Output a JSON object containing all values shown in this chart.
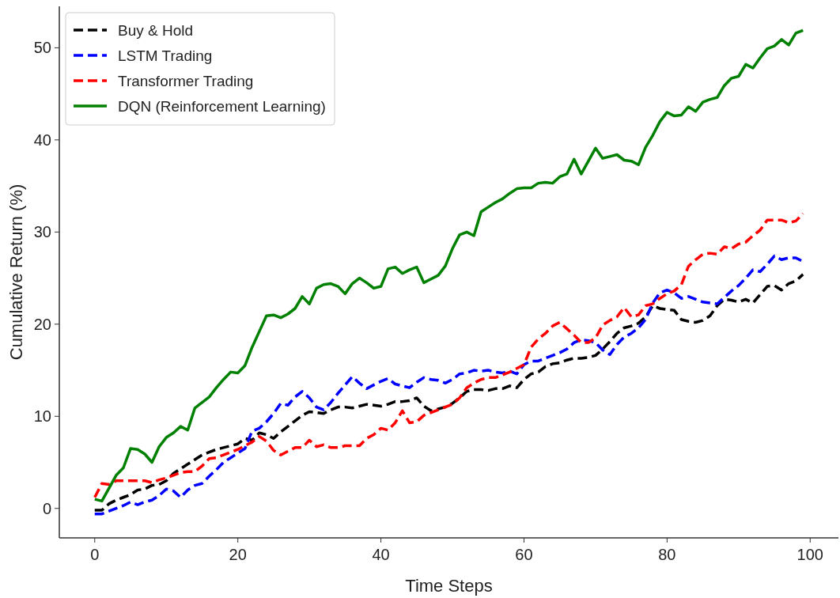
{
  "chart_data": {
    "type": "line",
    "xlabel": "Time Steps",
    "ylabel": "Cumulative Return (%)",
    "x": [
      0,
      1,
      2,
      3,
      4,
      5,
      6,
      7,
      8,
      9,
      10,
      11,
      12,
      13,
      14,
      15,
      16,
      17,
      18,
      19,
      20,
      21,
      22,
      23,
      24,
      25,
      26,
      27,
      28,
      29,
      30,
      31,
      32,
      33,
      34,
      35,
      36,
      37,
      38,
      39,
      40,
      41,
      42,
      43,
      44,
      45,
      46,
      47,
      48,
      49,
      50,
      51,
      52,
      53,
      54,
      55,
      56,
      57,
      58,
      59,
      60,
      61,
      62,
      63,
      64,
      65,
      66,
      67,
      68,
      69,
      70,
      71,
      72,
      73,
      74,
      75,
      76,
      77,
      78,
      79,
      80,
      81,
      82,
      83,
      84,
      85,
      86,
      87,
      88,
      89,
      90,
      91,
      92,
      93,
      94,
      95,
      96,
      97,
      98,
      99
    ],
    "series": [
      {
        "name": "Buy & Hold",
        "color": "#000000",
        "line_style": "dashed",
        "values": [
          -0.2,
          -0.2,
          0.5,
          0.9,
          1.2,
          1.5,
          2.0,
          2.1,
          2.5,
          2.6,
          3.0,
          3.8,
          4.3,
          4.8,
          5.3,
          5.8,
          6.1,
          6.4,
          6.6,
          6.8,
          7.0,
          7.6,
          7.4,
          8.2,
          8.0,
          7.6,
          8.3,
          8.9,
          9.5,
          10.1,
          10.5,
          10.4,
          10.3,
          10.7,
          11.0,
          11.0,
          10.9,
          11.1,
          11.3,
          11.2,
          11.1,
          11.3,
          11.6,
          11.6,
          11.7,
          12.0,
          11.1,
          10.6,
          10.8,
          11.0,
          11.4,
          12.0,
          12.7,
          12.9,
          12.9,
          12.8,
          13.0,
          13.0,
          13.3,
          13.1,
          14.0,
          14.6,
          14.8,
          15.4,
          15.7,
          15.8,
          16.1,
          16.3,
          16.3,
          16.4,
          16.6,
          17.3,
          18.1,
          19.0,
          19.6,
          19.8,
          20.1,
          20.8,
          22.0,
          21.7,
          21.6,
          21.5,
          20.5,
          20.3,
          20.2,
          20.4,
          20.9,
          22.0,
          22.7,
          22.6,
          22.4,
          22.7,
          22.3,
          23.2,
          24.1,
          24.2,
          23.7,
          24.4,
          24.7,
          25.4
        ]
      },
      {
        "name": "LSTM Trading",
        "color": "#0000ff",
        "line_style": "dashed",
        "values": [
          -0.6,
          -0.6,
          -0.3,
          0.0,
          0.3,
          0.7,
          0.4,
          0.7,
          0.9,
          1.4,
          2.1,
          1.9,
          1.2,
          2.0,
          2.5,
          2.7,
          3.5,
          4.2,
          5.0,
          5.5,
          6.0,
          6.5,
          8.4,
          8.7,
          9.4,
          10.3,
          11.4,
          11.2,
          12.1,
          12.7,
          12.0,
          11.0,
          10.7,
          11.5,
          12.5,
          13.4,
          14.3,
          13.6,
          13.0,
          13.4,
          13.8,
          14.1,
          13.5,
          13.3,
          13.1,
          13.7,
          14.2,
          14.0,
          13.9,
          13.6,
          14.0,
          14.6,
          14.7,
          15.0,
          14.9,
          15.0,
          14.8,
          14.7,
          14.9,
          14.6,
          15.6,
          16.0,
          16.0,
          16.3,
          16.6,
          16.9,
          17.3,
          18.0,
          18.3,
          18.2,
          18.0,
          17.2,
          16.7,
          17.8,
          18.6,
          19.0,
          19.6,
          20.5,
          22.3,
          23.4,
          23.7,
          23.4,
          22.8,
          23.0,
          22.7,
          22.4,
          22.3,
          22.2,
          22.9,
          23.6,
          24.2,
          25.0,
          25.9,
          25.7,
          26.5,
          27.4,
          27.0,
          27.2,
          27.2,
          26.8
        ]
      },
      {
        "name": "Transformer Trading",
        "color": "#ff0000",
        "line_style": "dashed",
        "values": [
          1.2,
          2.7,
          2.6,
          3.0,
          3.0,
          3.0,
          3.0,
          3.0,
          2.8,
          3.1,
          3.3,
          3.6,
          3.9,
          4.0,
          4.0,
          4.6,
          5.4,
          5.5,
          5.8,
          6.1,
          6.4,
          6.8,
          7.2,
          7.8,
          7.3,
          6.3,
          5.8,
          6.2,
          6.6,
          6.6,
          7.4,
          6.7,
          6.9,
          6.6,
          6.6,
          6.8,
          6.8,
          6.8,
          7.6,
          8.0,
          8.7,
          8.5,
          9.3,
          10.6,
          9.3,
          9.4,
          10.1,
          10.4,
          10.7,
          11.0,
          11.3,
          12.0,
          13.1,
          13.6,
          14.0,
          14.2,
          14.2,
          14.5,
          14.8,
          15.2,
          15.6,
          17.5,
          18.4,
          19.0,
          19.8,
          20.2,
          19.5,
          18.8,
          18.0,
          18.0,
          18.5,
          19.9,
          20.4,
          20.8,
          21.8,
          20.8,
          21.0,
          22.0,
          22.2,
          22.8,
          23.3,
          23.6,
          24.3,
          26.3,
          27.0,
          27.6,
          27.7,
          27.6,
          28.4,
          28.2,
          28.7,
          28.9,
          29.6,
          30.2,
          31.3,
          31.3,
          31.3,
          31.0,
          31.2,
          32.0
        ]
      },
      {
        "name": "DQN (Reinforcement Learning)",
        "color": "#008000",
        "line_style": "solid",
        "values": [
          1.0,
          0.8,
          2.2,
          3.6,
          4.4,
          6.5,
          6.4,
          5.9,
          5.0,
          6.7,
          7.7,
          8.2,
          8.9,
          8.5,
          10.9,
          11.5,
          12.1,
          13.1,
          14.0,
          14.8,
          14.7,
          15.5,
          17.5,
          19.2,
          20.9,
          21.0,
          20.7,
          21.1,
          21.7,
          23.0,
          22.2,
          23.9,
          24.3,
          24.4,
          24.1,
          23.3,
          24.4,
          25.0,
          24.5,
          23.9,
          24.1,
          26.0,
          26.2,
          25.5,
          25.9,
          26.2,
          24.5,
          24.9,
          25.3,
          26.3,
          28.2,
          29.7,
          30.0,
          29.6,
          32.2,
          32.7,
          33.2,
          33.6,
          34.2,
          34.7,
          34.8,
          34.8,
          35.3,
          35.4,
          35.3,
          36.0,
          36.3,
          37.9,
          36.3,
          37.7,
          39.1,
          38.0,
          38.2,
          38.4,
          37.8,
          37.7,
          37.3,
          39.2,
          40.5,
          42.0,
          43.0,
          42.6,
          42.7,
          43.6,
          43.1,
          44.1,
          44.4,
          44.6,
          45.9,
          46.7,
          46.9,
          48.2,
          47.8,
          48.9,
          49.9,
          50.2,
          50.9,
          50.3,
          51.6,
          51.9
        ]
      }
    ],
    "xlim": [
      -4.95,
      103.95
    ],
    "xticks": [
      0,
      20,
      40,
      60,
      80,
      100
    ],
    "ylim": [
      -3.2,
      54.5
    ],
    "yticks": [
      0,
      10,
      20,
      30,
      40,
      50
    ],
    "grid": false,
    "legend": "top left"
  }
}
